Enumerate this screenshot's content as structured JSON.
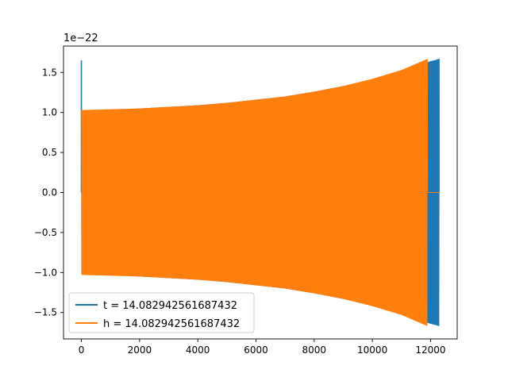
{
  "chart_data": {
    "type": "line",
    "title": "",
    "xlabel": "",
    "ylabel": "",
    "offset_text": "1e−22",
    "xlim": [
      -615,
      12915
    ],
    "ylim": [
      -1.83,
      1.83
    ],
    "xticks": [
      0,
      2000,
      4000,
      6000,
      8000,
      10000,
      12000
    ],
    "xtick_labels": [
      "0",
      "2000",
      "4000",
      "6000",
      "8000",
      "10000",
      "12000"
    ],
    "yticks": [
      -1.5,
      -1.0,
      -0.5,
      0.0,
      0.5,
      1.0,
      1.5
    ],
    "ytick_labels": [
      "−1.5",
      "−1.0",
      "−0.5",
      "0.0",
      "0.5",
      "1.0",
      "1.5"
    ],
    "grid": false,
    "legend_position": "lower-left",
    "series": [
      {
        "name": "t = 14.082942561687432",
        "color": "#1f77b4",
        "spike": {
          "x": 0,
          "peak": 1.65
        },
        "envelope_x": [
          0,
          1000,
          2000,
          3000,
          4000,
          5000,
          6000,
          7000,
          8000,
          9000,
          10000,
          11000,
          11800,
          12300
        ],
        "envelope_amp": [
          1.02,
          1.03,
          1.05,
          1.07,
          1.09,
          1.12,
          1.16,
          1.2,
          1.26,
          1.33,
          1.41,
          1.52,
          1.62,
          1.67
        ],
        "end_x": 12300
      },
      {
        "name": "h = 14.082942561687432",
        "color": "#ff7f0e",
        "envelope_x": [
          0,
          1000,
          2000,
          3000,
          4000,
          5000,
          6000,
          7000,
          8000,
          9000,
          10000,
          11000,
          11900
        ],
        "envelope_amp": [
          1.03,
          1.04,
          1.05,
          1.07,
          1.09,
          1.12,
          1.16,
          1.2,
          1.26,
          1.33,
          1.42,
          1.53,
          1.67
        ],
        "end_x": 11900,
        "flat_tail_to": 12300
      }
    ]
  }
}
